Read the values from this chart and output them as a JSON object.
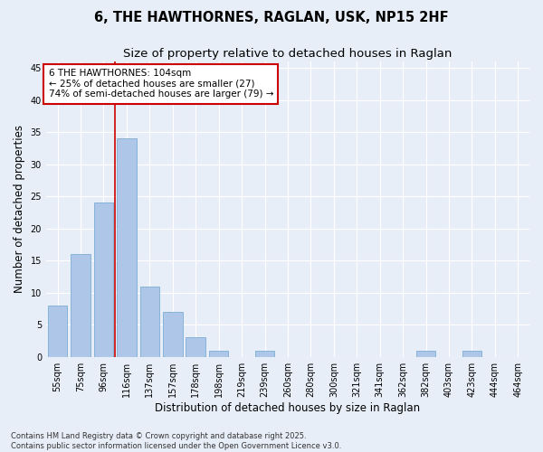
{
  "title_line1": "6, THE HAWTHORNES, RAGLAN, USK, NP15 2HF",
  "title_line2": "Size of property relative to detached houses in Raglan",
  "xlabel": "Distribution of detached houses by size in Raglan",
  "ylabel": "Number of detached properties",
  "categories": [
    "55sqm",
    "75sqm",
    "96sqm",
    "116sqm",
    "137sqm",
    "157sqm",
    "178sqm",
    "198sqm",
    "219sqm",
    "239sqm",
    "260sqm",
    "280sqm",
    "300sqm",
    "321sqm",
    "341sqm",
    "362sqm",
    "382sqm",
    "403sqm",
    "423sqm",
    "444sqm",
    "464sqm"
  ],
  "values": [
    8,
    16,
    24,
    34,
    11,
    7,
    3,
    1,
    0,
    1,
    0,
    0,
    0,
    0,
    0,
    0,
    1,
    0,
    1,
    0,
    0
  ],
  "bar_color": "#aec6e8",
  "bar_edge_color": "#7aadd4",
  "background_color": "#e8eef8",
  "grid_color": "#ffffff",
  "vline_x_index": 2.5,
  "vline_color": "#cc0000",
  "annotation_text": "6 THE HAWTHORNES: 104sqm\n← 25% of detached houses are smaller (27)\n74% of semi-detached houses are larger (79) →",
  "annotation_box_color": "#ffffff",
  "annotation_box_edge_color": "#cc0000",
  "ylim": [
    0,
    46
  ],
  "yticks": [
    0,
    5,
    10,
    15,
    20,
    25,
    30,
    35,
    40,
    45
  ],
  "footer_text": "Contains HM Land Registry data © Crown copyright and database right 2025.\nContains public sector information licensed under the Open Government Licence v3.0.",
  "title_fontsize": 10.5,
  "subtitle_fontsize": 9.5,
  "tick_fontsize": 7,
  "ylabel_fontsize": 8.5,
  "xlabel_fontsize": 8.5,
  "annotation_fontsize": 7.5,
  "footer_fontsize": 6
}
